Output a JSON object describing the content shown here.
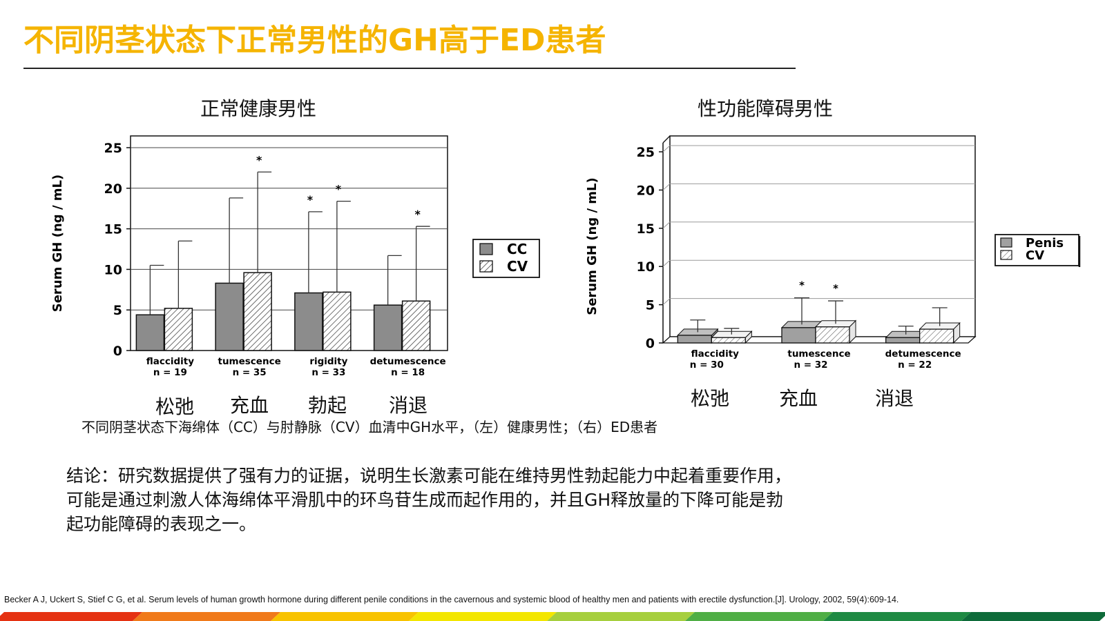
{
  "slide": {
    "title": "不同阴茎状态下正常男性的GH高于ED患者",
    "caption": "不同阴茎状态下海绵体（CC）与肘静脉（CV）血清中GH水平，（左）健康男性；（右）ED患者",
    "conclusion_lines": [
      "结论：研究数据提供了强有力的证据，说明生长激素可能在维持男性勃起能力中起着重要作用，",
      "可能是通过刺激人体海绵体平滑肌中的环鸟苷生成而起作用的，并且GH释放量的下降可能是勃",
      "起功能障碍的表现之一。"
    ],
    "reference": "Becker A J, Uckert S, Stief C G, et al. Serum levels of human growth hormone during different  penile conditions in the cavernous  and systemic blood of healthy men and patients with erectile dysfunction.[J]. Urology, 2002, 59(4):609-14.",
    "stripe_colors": [
      "#e53212",
      "#f07a1a",
      "#f8c300",
      "#f3e600",
      "#a6cf3e",
      "#4fae45",
      "#1e8a43",
      "#0e6b3a"
    ]
  },
  "left_panel": {
    "heading": "正常健康男性",
    "stage_labels_cn": [
      "松弛",
      "充血",
      "勃起",
      "消退"
    ]
  },
  "right_panel": {
    "heading": "性功能障碍男性",
    "stage_labels_cn": [
      "松弛",
      "充血",
      "消退"
    ]
  },
  "chart_data": [
    {
      "type": "bar",
      "ylabel": "Serum GH (ng / mL)",
      "ylim": [
        0,
        25
      ],
      "yticks": [
        "0",
        "5",
        "10",
        "15",
        "20",
        "25"
      ],
      "grid": true,
      "legend_position": "right",
      "categories": [
        "flaccidity",
        "tumescence",
        "rigidity",
        "detumescence"
      ],
      "category_n": [
        "n = 19",
        "n = 35",
        "n = 33",
        "n = 18"
      ],
      "series": [
        {
          "name": "CC",
          "fill": "#8c8c8c",
          "pattern": "solid",
          "values": [
            4.4,
            8.3,
            7.1,
            5.6
          ],
          "errors": [
            6.1,
            10.5,
            10.0,
            6.1
          ],
          "significant": [
            false,
            false,
            true,
            false
          ]
        },
        {
          "name": "CV",
          "fill": "#ffffff",
          "pattern": "hatched",
          "values": [
            5.2,
            9.6,
            7.2,
            6.1
          ],
          "errors": [
            8.3,
            12.4,
            11.2,
            9.2
          ],
          "significant": [
            false,
            true,
            true,
            true
          ]
        }
      ],
      "significance_marker": "*"
    },
    {
      "type": "bar",
      "ylabel": "Serum GH (ng / mL)",
      "ylim": [
        0,
        25
      ],
      "yticks": [
        "0",
        "5",
        "10",
        "15",
        "20",
        "25"
      ],
      "grid": true,
      "legend_position": "right",
      "style": "3d",
      "categories": [
        "flaccidity",
        "tumescence",
        "detumescence"
      ],
      "category_n": [
        "n = 30",
        "n = 32",
        "n = 22"
      ],
      "series": [
        {
          "name": "Penis",
          "fill": "#a0a0a0",
          "pattern": "solid",
          "values": [
            1.0,
            2.0,
            0.7
          ],
          "errors": [
            2.0,
            3.9,
            1.5
          ],
          "significant": [
            false,
            true,
            false
          ]
        },
        {
          "name": "CV",
          "fill": "#ffffff",
          "pattern": "hatched",
          "values": [
            0.7,
            2.1,
            1.8
          ],
          "errors": [
            1.2,
            3.4,
            2.8
          ],
          "significant": [
            false,
            true,
            false
          ]
        }
      ],
      "significance_marker": "*"
    }
  ]
}
